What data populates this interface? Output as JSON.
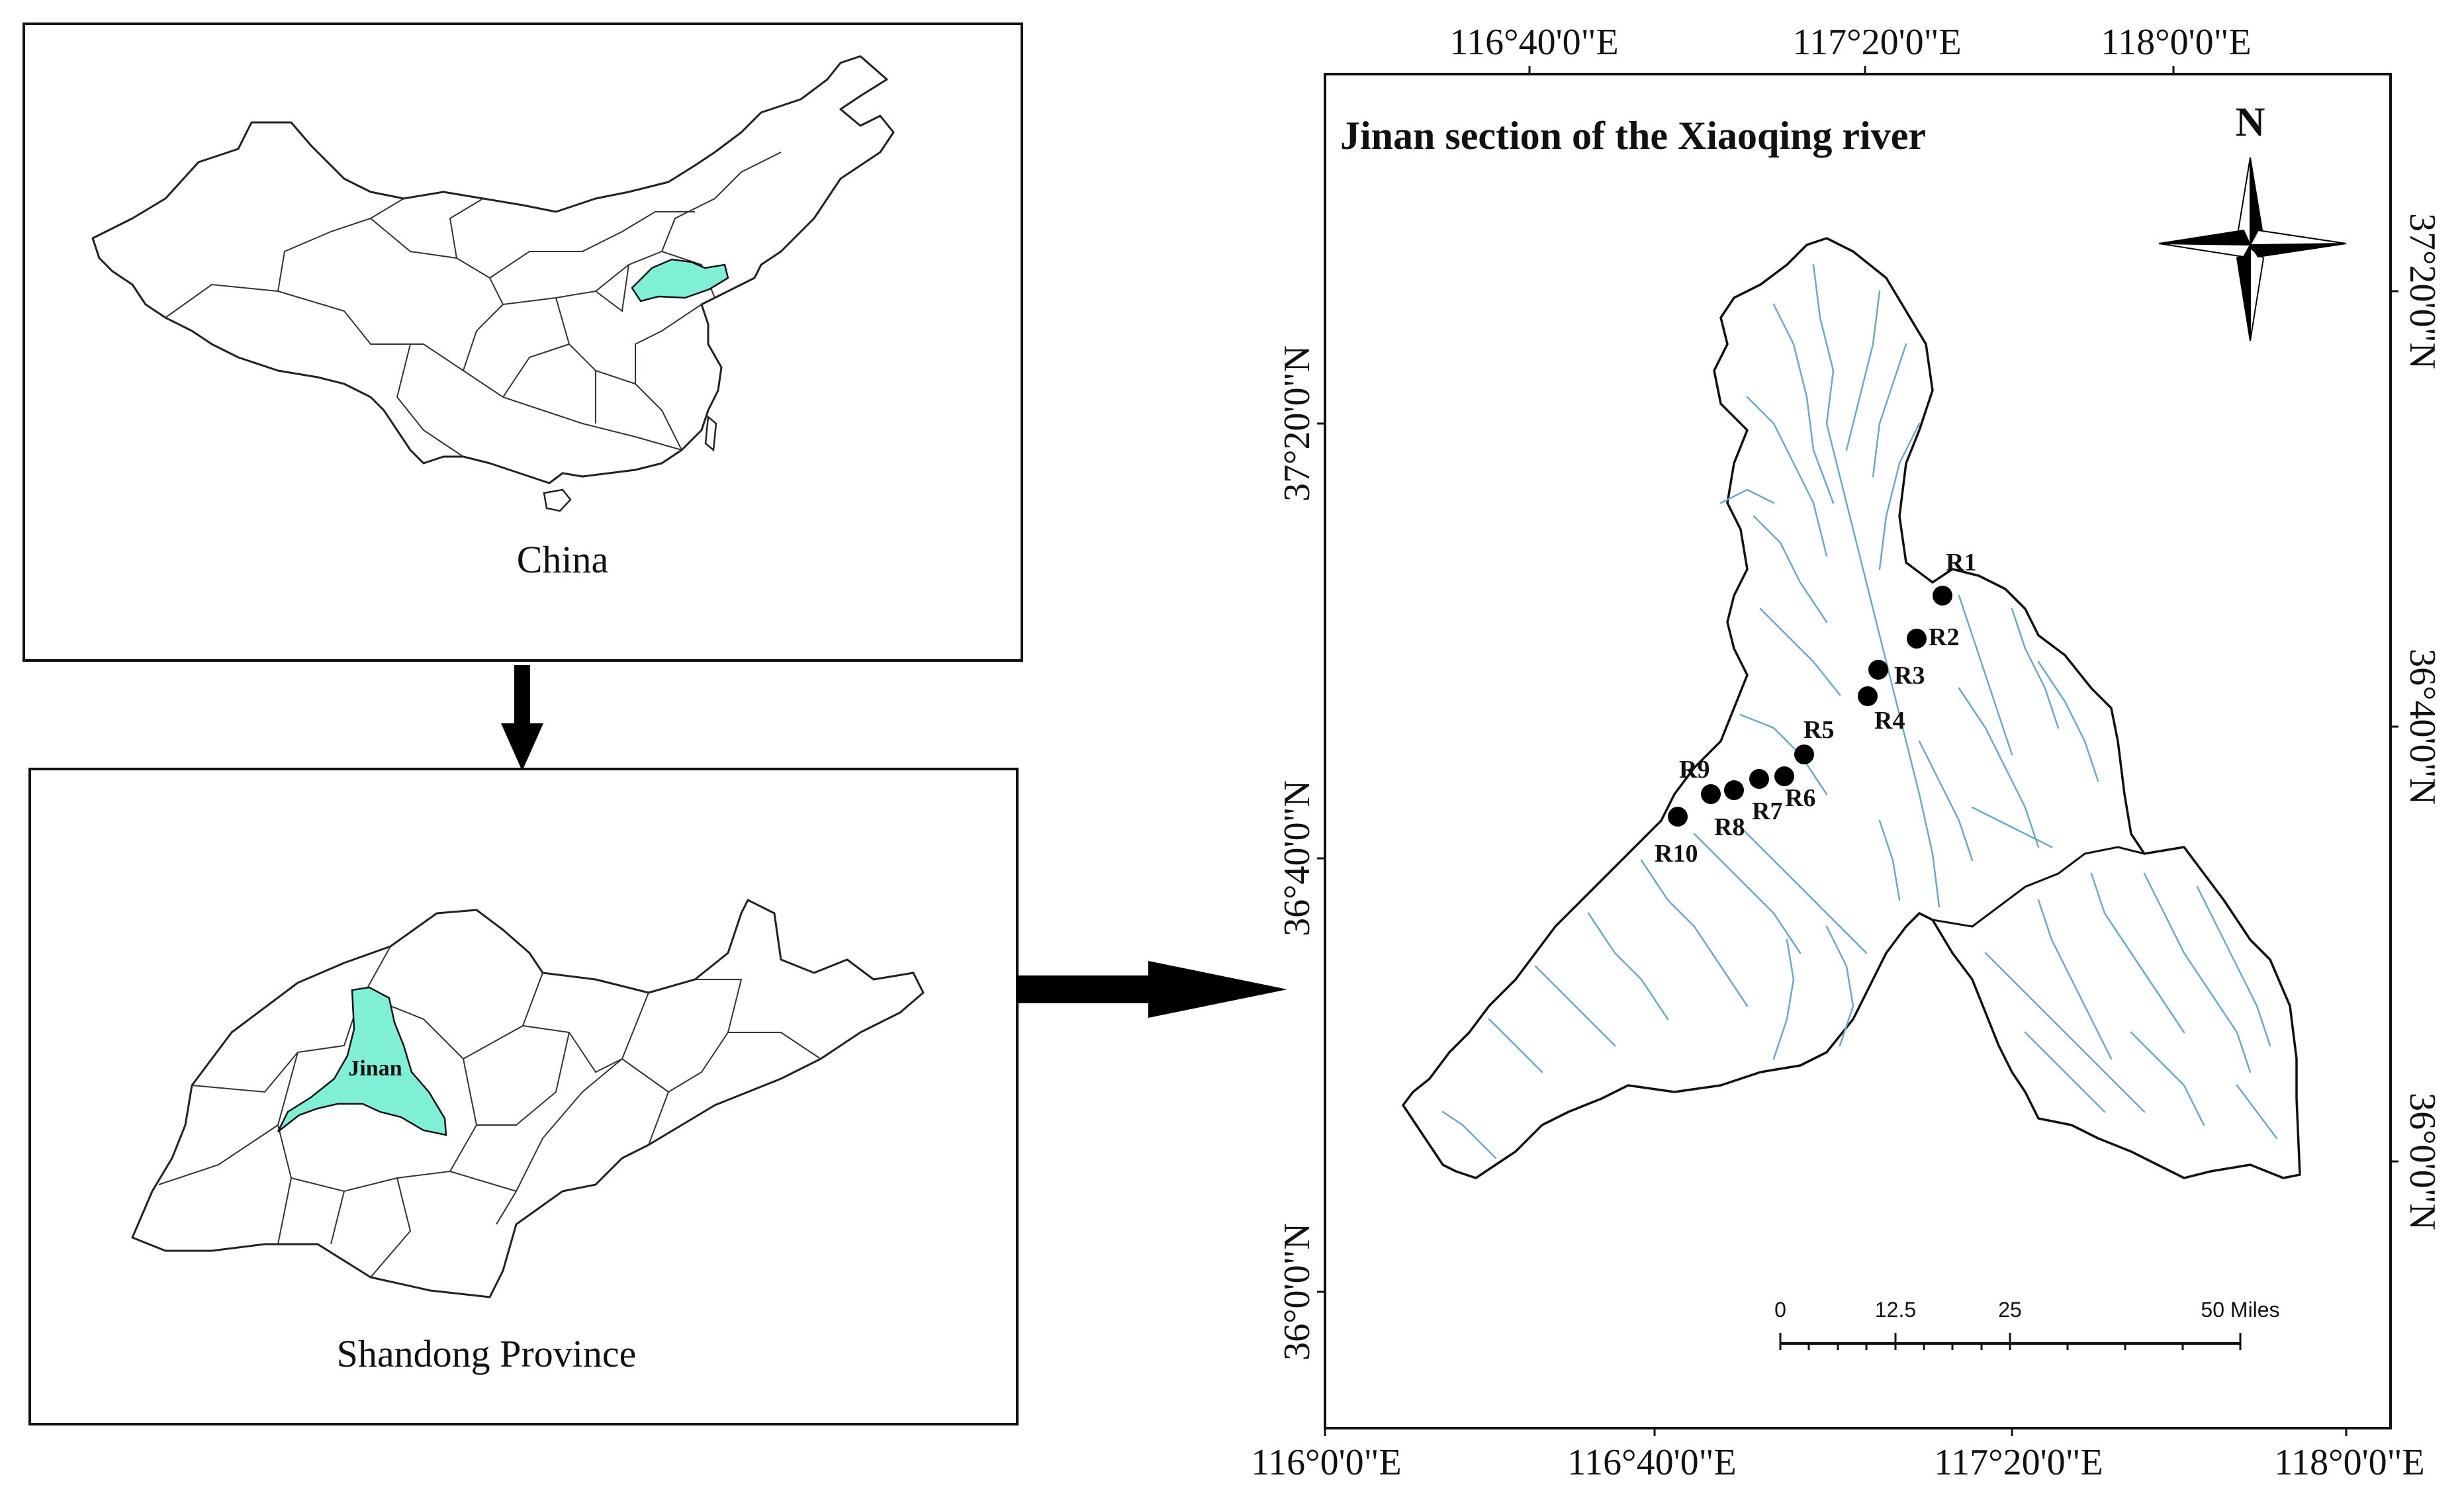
{
  "panels": {
    "china": {
      "caption": "China"
    },
    "shandong": {
      "caption": "Shandong Province",
      "city_label": "Jinan"
    },
    "main": {
      "title": "Jinan section of the Xiaoqing river",
      "north_label": "N",
      "top_axis_labels": [
        "116°40'0\"E",
        "117°20'0\"E",
        "118°0'0\"E"
      ],
      "bottom_axis_labels": [
        "116°0'0\"E",
        "116°40'0\"E",
        "117°20'0\"E",
        "118°0'0\"E"
      ],
      "left_axis_labels": [
        "37°20'0\"N",
        "36°40'0\"N",
        "36°0'0\"N"
      ],
      "right_axis_labels": [
        "37°20'0\"N",
        "36°40'0\"N",
        "36°0'0\"N"
      ],
      "scale_bar": {
        "ticks": [
          "0",
          "12.5",
          "25",
          "50 Miles"
        ]
      },
      "sampling_sites": [
        "R1",
        "R2",
        "R3",
        "R4",
        "R5",
        "R6",
        "R7",
        "R8",
        "R9",
        "R10"
      ]
    }
  },
  "colors": {
    "highlight": "#7ff0d6",
    "river": "#6aa9c8",
    "outline": "#111111"
  }
}
